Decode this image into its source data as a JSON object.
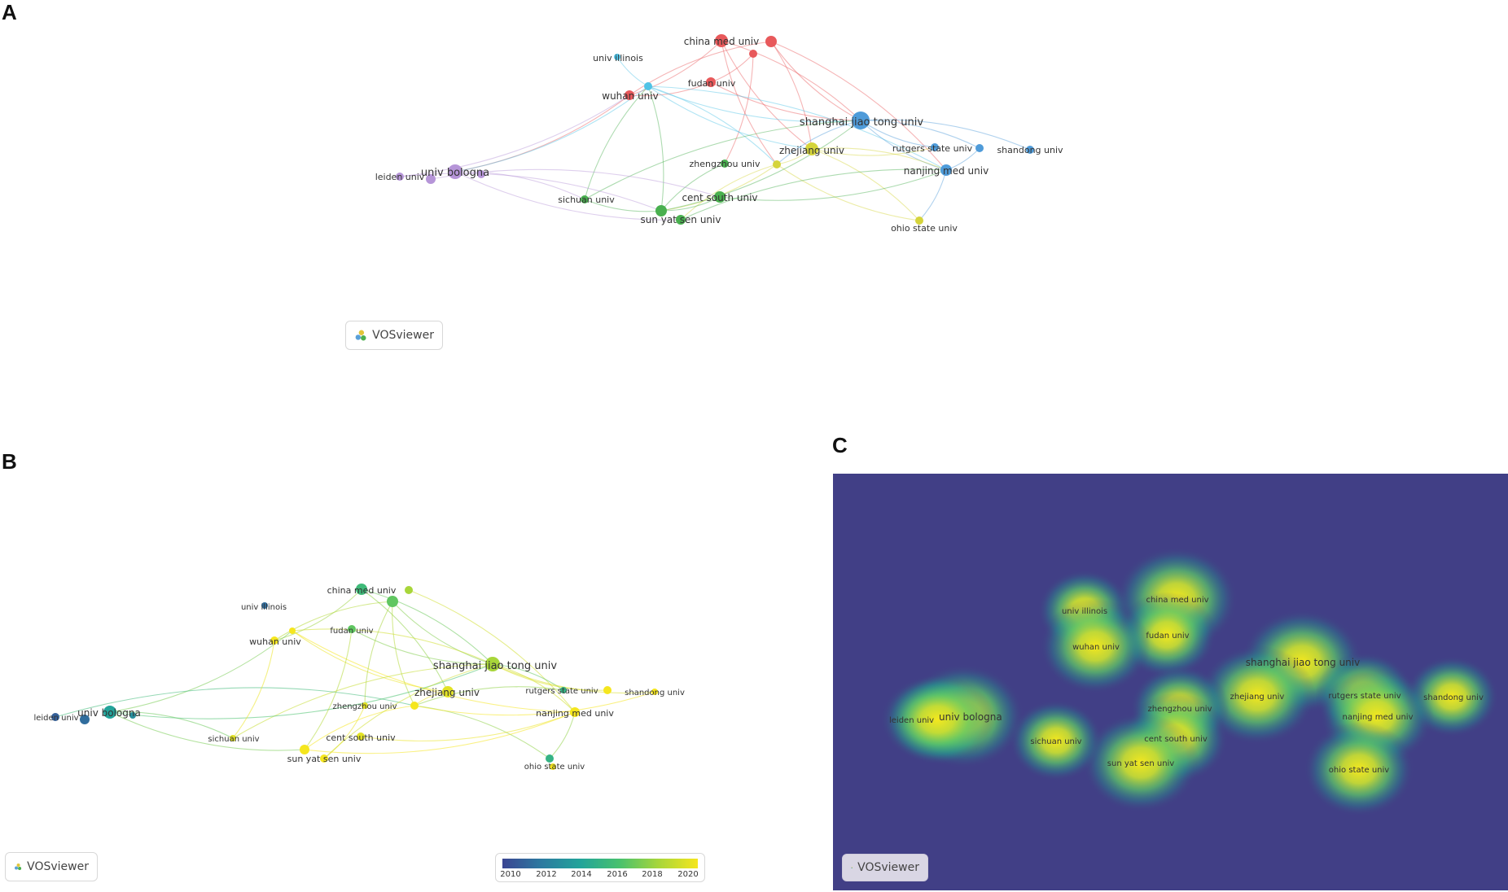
{
  "panel_labels": {
    "a": "A",
    "b": "B",
    "c": "C"
  },
  "vosviewer_label": "VOSviewer",
  "colors": {
    "red": "#e8595b",
    "blue": "#4f9bd9",
    "cyan": "#4fc3e6",
    "green": "#49b04f",
    "yellow": "#d5d43b",
    "purple": "#b695d8",
    "density_bg": "#413f86"
  },
  "panel_a": {
    "nodes": [
      {
        "id": "china_med_univ",
        "label": "china med univ",
        "cluster": "red",
        "size": 8
      },
      {
        "id": "red2",
        "label": "",
        "cluster": "red",
        "size": 7
      },
      {
        "id": "red3",
        "label": "",
        "cluster": "red",
        "size": 5
      },
      {
        "id": "fudan_univ",
        "label": "fudan univ",
        "cluster": "red",
        "size": 6
      },
      {
        "id": "wuhan_univ",
        "label": "wuhan univ",
        "cluster": "red",
        "size": 6
      },
      {
        "id": "univ_illinois",
        "label": "univ illinois",
        "cluster": "cyan",
        "size": 4
      },
      {
        "id": "cyan2",
        "label": "",
        "cluster": "cyan",
        "size": 5
      },
      {
        "id": "shanghai_jiao_tong_univ",
        "label": "shanghai jiao tong univ",
        "cluster": "blue",
        "size": 11
      },
      {
        "id": "rutgers_state_univ",
        "label": "rutgers state univ",
        "cluster": "blue",
        "size": 5
      },
      {
        "id": "blue2",
        "label": "",
        "cluster": "blue",
        "size": 5
      },
      {
        "id": "shandong_univ",
        "label": "shandong univ",
        "cluster": "blue",
        "size": 5
      },
      {
        "id": "nanjing_med_univ",
        "label": "nanjing med univ",
        "cluster": "blue",
        "size": 7
      },
      {
        "id": "zhejiang_univ",
        "label": "zhejiang univ",
        "cluster": "yellow",
        "size": 8
      },
      {
        "id": "yellow2",
        "label": "",
        "cluster": "yellow",
        "size": 5
      },
      {
        "id": "ohio_state_univ",
        "label": "ohio state univ",
        "cluster": "yellow",
        "size": 5
      },
      {
        "id": "zhengzhou_univ",
        "label": "zhengzhou univ",
        "cluster": "green",
        "size": 5
      },
      {
        "id": "cent_south_univ",
        "label": "cent south univ",
        "cluster": "green",
        "size": 7
      },
      {
        "id": "sichuan_univ",
        "label": "sichuan univ",
        "cluster": "green",
        "size": 5
      },
      {
        "id": "green2",
        "label": "",
        "cluster": "green",
        "size": 7
      },
      {
        "id": "sun_yat_sen_univ",
        "label": "sun yat sen univ",
        "cluster": "green",
        "size": 6
      },
      {
        "id": "univ_bologna",
        "label": "univ bologna",
        "cluster": "purple",
        "size": 9
      },
      {
        "id": "purple2",
        "label": "",
        "cluster": "purple",
        "size": 5
      },
      {
        "id": "purple3",
        "label": "",
        "cluster": "purple",
        "size": 6
      },
      {
        "id": "leiden_univ",
        "label": "leiden univ",
        "cluster": "purple",
        "size": 5
      }
    ]
  },
  "panel_b": {
    "legend_ticks": [
      "2010",
      "2012",
      "2014",
      "2016",
      "2018",
      "2020"
    ],
    "nodes": [
      {
        "id": "china_med_univ",
        "label": "china med univ",
        "year": 2015.5,
        "size": 7
      },
      {
        "id": "b_green2",
        "label": "",
        "year": 2016.5,
        "size": 7
      },
      {
        "id": "b_green3",
        "label": "",
        "year": 2018,
        "size": 5
      },
      {
        "id": "univ_illinois",
        "label": "univ illinois",
        "year": 2011.5,
        "size": 4
      },
      {
        "id": "fudan_univ",
        "label": "fudan univ",
        "year": 2016.5,
        "size": 5
      },
      {
        "id": "wuhan_univ",
        "label": "wuhan univ",
        "year": 2020,
        "size": 5
      },
      {
        "id": "b_w2",
        "label": "",
        "year": 2020,
        "size": 4
      },
      {
        "id": "shanghai_jiao_tong_univ",
        "label": "shanghai jiao tong univ",
        "year": 2018,
        "size": 9
      },
      {
        "id": "rutgers_state_univ",
        "label": "rutgers state univ",
        "year": 2015,
        "size": 4
      },
      {
        "id": "b_r2",
        "label": "",
        "year": 2020.5,
        "size": 5
      },
      {
        "id": "shandong_univ",
        "label": "shandong univ",
        "year": 2020.5,
        "size": 4
      },
      {
        "id": "nanjing_med_univ",
        "label": "nanjing med univ",
        "year": 2020,
        "size": 6
      },
      {
        "id": "zhejiang_univ",
        "label": "zhejiang univ",
        "year": 2019.5,
        "size": 7
      },
      {
        "id": "b_zz",
        "label": "",
        "year": 2020,
        "size": 5
      },
      {
        "id": "zhengzhou_univ",
        "label": "zhengzhou univ",
        "year": 2019.5,
        "size": 4
      },
      {
        "id": "cent_south_univ",
        "label": "cent south univ",
        "year": 2019.5,
        "size": 5
      },
      {
        "id": "sichuan_univ",
        "label": "sichuan univ",
        "year": 2019.5,
        "size": 4
      },
      {
        "id": "sun_yat_sen_univ",
        "label": "sun yat sen univ",
        "year": 2020,
        "size": 6
      },
      {
        "id": "b_sys2",
        "label": "",
        "year": 2020,
        "size": 5
      },
      {
        "id": "ohio_state_univ",
        "label": "ohio state univ",
        "year": 2015,
        "size": 5
      },
      {
        "id": "b_o2",
        "label": "",
        "year": 2020,
        "size": 4
      },
      {
        "id": "univ_bologna",
        "label": "univ bologna",
        "year": 2014,
        "size": 8
      },
      {
        "id": "b_bo2",
        "label": "",
        "year": 2013,
        "size": 4
      },
      {
        "id": "leiden_univ",
        "label": "leiden univ",
        "year": 2011,
        "size": 5
      },
      {
        "id": "b_l2",
        "label": "",
        "year": 2011.5,
        "size": 6
      }
    ]
  },
  "panel_c": {
    "labels": [
      {
        "id": "univ_illinois",
        "label": "univ illinois",
        "weight": 0.5
      },
      {
        "id": "china_med_univ",
        "label": "china med univ",
        "weight": 1.0
      },
      {
        "id": "fudan_univ",
        "label": "fudan univ",
        "weight": 0.6
      },
      {
        "id": "wuhan_univ",
        "label": "wuhan univ",
        "weight": 0.8
      },
      {
        "id": "shanghai_jiao_tong_univ",
        "label": "shanghai jiao tong univ",
        "weight": 1.0
      },
      {
        "id": "zhejiang_univ",
        "label": "zhejiang univ",
        "weight": 0.9
      },
      {
        "id": "rutgers_state_univ",
        "label": "rutgers state univ",
        "weight": 0.6
      },
      {
        "id": "shandong_univ",
        "label": "shandong univ",
        "weight": 0.5
      },
      {
        "id": "nanjing_med_univ",
        "label": "nanjing med univ",
        "weight": 0.85
      },
      {
        "id": "zhengzhou_univ",
        "label": "zhengzhou univ",
        "weight": 0.6
      },
      {
        "id": "cent_south_univ",
        "label": "cent south univ",
        "weight": 0.7
      },
      {
        "id": "sun_yat_sen_univ",
        "label": "sun yat sen univ",
        "weight": 0.9
      },
      {
        "id": "sichuan_univ",
        "label": "sichuan univ",
        "weight": 0.5
      },
      {
        "id": "ohio_state_univ",
        "label": "ohio state univ",
        "weight": 0.8
      },
      {
        "id": "leiden_univ",
        "label": "leiden univ",
        "weight": 0.7
      },
      {
        "id": "univ_bologna",
        "label": "univ bologna",
        "weight": 1.0
      }
    ]
  }
}
